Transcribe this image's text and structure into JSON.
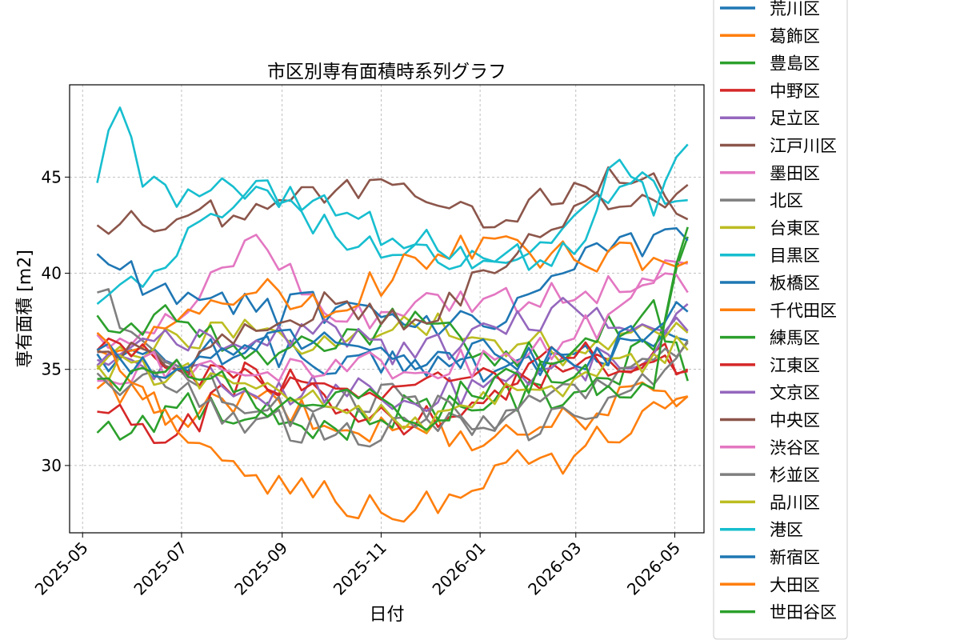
{
  "chart_data": {
    "type": "line",
    "title": "市区別専有面積時系列グラフ",
    "xlabel": "日付",
    "ylabel": "専有面積 [m2]",
    "x_ticks": [
      "2025-05",
      "2025-07",
      "2025-09",
      "2025-11",
      "2026-01",
      "2026-03",
      "2026-05"
    ],
    "y_ticks": [
      30,
      35,
      40,
      45
    ],
    "x_range": [
      "2025-04-23",
      "2026-05-19"
    ],
    "ylim": [
      26.5,
      49.8
    ],
    "grid": true,
    "legend_position": "right-outside",
    "series": [
      {
        "name": "荒川区",
        "color": "#1f77b4",
        "dates": [
          "2025-05-10",
          "2025-06-28",
          "2025-08-16",
          "2025-10-04",
          "2025-11-22",
          "2026-01-10",
          "2026-02-28",
          "2026-04-18",
          "2026-05-09"
        ],
        "values": [
          35.8,
          35.2,
          36.5,
          34.8,
          35.5,
          34.9,
          35.8,
          36.2,
          36.5
        ]
      },
      {
        "name": "葛飾区",
        "color": "#ff7f0e",
        "dates": [
          "2025-05-10",
          "2025-06-28",
          "2025-08-16",
          "2025-10-04",
          "2025-11-22",
          "2026-01-10",
          "2026-02-28",
          "2026-04-18",
          "2026-05-09"
        ],
        "values": [
          34.0,
          32.6,
          33.5,
          31.8,
          32.0,
          31.5,
          32.5,
          33.9,
          33.6
        ]
      },
      {
        "name": "豊島区",
        "color": "#2ca02c",
        "dates": [
          "2025-05-10",
          "2025-06-28",
          "2025-08-16",
          "2025-10-04",
          "2025-11-22",
          "2026-01-10",
          "2026-02-28",
          "2026-04-18",
          "2026-05-09"
        ],
        "values": [
          31.7,
          33.0,
          32.5,
          31.9,
          33.2,
          33.4,
          33.8,
          36.0,
          41.9
        ]
      },
      {
        "name": "中野区",
        "color": "#d62728",
        "dates": [
          "2025-05-10",
          "2025-06-28",
          "2025-08-16",
          "2025-10-04",
          "2025-11-22",
          "2026-01-10",
          "2026-02-28",
          "2026-04-18",
          "2026-05-09"
        ],
        "values": [
          32.8,
          31.6,
          35.0,
          32.7,
          32.1,
          33.9,
          35.1,
          35.9,
          35.0
        ]
      },
      {
        "name": "足立区",
        "color": "#9467bd",
        "dates": [
          "2025-05-10",
          "2025-06-28",
          "2025-08-16",
          "2025-10-04",
          "2025-11-22",
          "2026-01-10",
          "2026-02-28",
          "2026-04-18",
          "2026-05-09"
        ],
        "values": [
          35.5,
          35.0,
          33.6,
          34.2,
          33.2,
          34.6,
          35.2,
          35.8,
          38.4
        ]
      },
      {
        "name": "江戸川区",
        "color": "#8c564b",
        "dates": [
          "2025-05-10",
          "2025-06-28",
          "2025-08-16",
          "2025-10-04",
          "2025-11-22",
          "2026-01-10",
          "2026-02-28",
          "2026-04-18",
          "2026-05-09"
        ],
        "values": [
          42.5,
          42.8,
          43.6,
          44.3,
          44.0,
          42.4,
          44.7,
          45.2,
          42.8
        ]
      },
      {
        "name": "墨田区",
        "color": "#e377c2",
        "dates": [
          "2025-05-10",
          "2025-06-28",
          "2025-08-16",
          "2025-10-04",
          "2025-11-22",
          "2026-01-10",
          "2026-02-28",
          "2026-04-18",
          "2026-05-09"
        ],
        "values": [
          36.8,
          37.5,
          42.0,
          37.5,
          38.5,
          38.9,
          38.6,
          39.5,
          40.5
        ]
      },
      {
        "name": "北区",
        "color": "#7f7f7f",
        "dates": [
          "2025-05-10",
          "2025-06-28",
          "2025-08-16",
          "2025-10-04",
          "2025-11-22",
          "2026-01-10",
          "2026-02-28",
          "2026-04-18",
          "2026-05-09"
        ],
        "values": [
          39.0,
          35.2,
          32.8,
          33.0,
          33.6,
          31.8,
          34.2,
          35.5,
          36.4
        ]
      },
      {
        "name": "台東区",
        "color": "#bcbd22",
        "dates": [
          "2025-05-10",
          "2025-06-28",
          "2025-08-16",
          "2025-10-04",
          "2025-11-22",
          "2026-01-10",
          "2026-02-28",
          "2026-04-18",
          "2026-05-09"
        ],
        "values": [
          35.0,
          36.8,
          37.0,
          36.2,
          37.3,
          36.5,
          36.0,
          37.0,
          36.9
        ]
      },
      {
        "name": "目黒区",
        "color": "#17becf",
        "dates": [
          "2025-05-10",
          "2025-06-28",
          "2025-08-16",
          "2025-10-04",
          "2025-11-22",
          "2026-01-10",
          "2026-02-28",
          "2026-04-18",
          "2026-05-09"
        ],
        "values": [
          38.4,
          40.9,
          44.8,
          41.9,
          41.5,
          40.6,
          43.0,
          44.8,
          43.8
        ]
      },
      {
        "name": "板橋区",
        "color": "#1f77b4",
        "dates": [
          "2025-05-10",
          "2025-06-28",
          "2025-08-16",
          "2025-10-04",
          "2025-11-22",
          "2026-01-10",
          "2026-02-28",
          "2026-04-18",
          "2026-05-09"
        ],
        "values": [
          41.0,
          38.4,
          38.0,
          38.2,
          37.2,
          37.1,
          40.2,
          42.0,
          41.7
        ]
      },
      {
        "name": "千代田区",
        "color": "#ff7f0e",
        "dates": [
          "2025-05-10",
          "2025-06-28",
          "2025-08-16",
          "2025-10-04",
          "2025-11-22",
          "2026-01-10",
          "2026-02-28",
          "2026-04-18",
          "2026-05-09"
        ],
        "values": [
          36.0,
          37.5,
          39.0,
          38.0,
          40.8,
          41.8,
          40.7,
          40.8,
          40.6
        ]
      },
      {
        "name": "練馬区",
        "color": "#2ca02c",
        "dates": [
          "2025-05-10",
          "2025-06-28",
          "2025-08-16",
          "2025-10-04",
          "2025-11-22",
          "2026-01-10",
          "2026-02-28",
          "2026-04-18",
          "2026-05-09"
        ],
        "values": [
          37.8,
          37.5,
          36.0,
          36.1,
          38.0,
          35.2,
          36.0,
          38.6,
          34.4
        ]
      },
      {
        "name": "江東区",
        "color": "#d62728",
        "dates": [
          "2025-05-10",
          "2025-06-28",
          "2025-08-16",
          "2025-10-04",
          "2025-11-22",
          "2026-01-10",
          "2026-02-28",
          "2026-04-18",
          "2026-05-09"
        ],
        "values": [
          36.0,
          35.0,
          34.6,
          34.0,
          34.2,
          34.8,
          35.6,
          35.4,
          34.9
        ]
      },
      {
        "name": "文京区",
        "color": "#9467bd",
        "dates": [
          "2025-05-10",
          "2025-06-28",
          "2025-08-16",
          "2025-10-04",
          "2025-11-22",
          "2026-01-10",
          "2026-02-28",
          "2026-04-18",
          "2026-05-09"
        ],
        "values": [
          35.2,
          36.3,
          36.5,
          37.2,
          35.6,
          37.2,
          38.2,
          37.1,
          37.0
        ]
      },
      {
        "name": "中央区",
        "color": "#8c564b",
        "dates": [
          "2025-05-10",
          "2025-06-28",
          "2025-08-16",
          "2025-10-04",
          "2025-11-22",
          "2026-01-10",
          "2026-02-28",
          "2026-04-18",
          "2026-05-09"
        ],
        "values": [
          35.9,
          35.0,
          37.0,
          38.4,
          37.6,
          40.0,
          43.5,
          43.8,
          44.6
        ]
      },
      {
        "name": "渋谷区",
        "color": "#e377c2",
        "dates": [
          "2025-05-10",
          "2025-06-28",
          "2025-08-16",
          "2025-10-04",
          "2025-11-22",
          "2026-01-10",
          "2026-02-28",
          "2026-04-18",
          "2026-05-09"
        ],
        "values": [
          34.4,
          35.5,
          34.7,
          35.5,
          34.8,
          35.5,
          36.6,
          39.6,
          39.0
        ]
      },
      {
        "name": "杉並区",
        "color": "#7f7f7f",
        "dates": [
          "2025-05-10",
          "2025-06-28",
          "2025-08-16",
          "2025-10-04",
          "2025-11-22",
          "2026-01-10",
          "2026-02-28",
          "2026-04-18",
          "2026-05-09"
        ],
        "values": [
          34.8,
          33.8,
          32.4,
          31.6,
          32.0,
          31.9,
          32.6,
          34.2,
          36.5
        ]
      },
      {
        "name": "品川区",
        "color": "#bcbd22",
        "dates": [
          "2025-05-10",
          "2025-06-28",
          "2025-08-16",
          "2025-10-04",
          "2025-11-22",
          "2026-01-10",
          "2026-02-28",
          "2026-04-18",
          "2026-05-09"
        ],
        "values": [
          35.2,
          35.0,
          34.0,
          33.0,
          32.5,
          33.2,
          34.5,
          35.8,
          36.0
        ]
      },
      {
        "name": "港区",
        "color": "#17becf",
        "dates": [
          "2025-05-10",
          "2025-05-25",
          "2025-06-07",
          "2025-07-12",
          "2025-08-16",
          "2025-10-04",
          "2025-11-22",
          "2026-01-10",
          "2026-02-28",
          "2026-03-28",
          "2026-04-18",
          "2026-05-09"
        ],
        "values": [
          44.7,
          48.9,
          44.5,
          44.0,
          44.5,
          43.0,
          41.5,
          40.6,
          41.0,
          45.9,
          43.0,
          46.7
        ]
      },
      {
        "name": "新宿区",
        "color": "#1f77b4",
        "dates": [
          "2025-05-10",
          "2025-06-28",
          "2025-08-16",
          "2025-10-04",
          "2025-11-22",
          "2026-01-10",
          "2026-02-28",
          "2026-04-18",
          "2026-05-09"
        ],
        "values": [
          36.0,
          35.0,
          36.0,
          36.4,
          35.0,
          35.8,
          35.2,
          37.0,
          38.0
        ]
      },
      {
        "name": "大田区",
        "color": "#ff7f0e",
        "dates": [
          "2025-05-10",
          "2025-06-28",
          "2025-08-16",
          "2025-10-04",
          "2025-11-22",
          "2026-01-10",
          "2026-02-28",
          "2026-04-18",
          "2026-05-09"
        ],
        "values": [
          36.9,
          31.8,
          29.5,
          28.1,
          27.7,
          30.0,
          30.5,
          33.3,
          33.6
        ]
      },
      {
        "name": "世田谷区",
        "color": "#2ca02c",
        "dates": [
          "2025-05-10",
          "2025-06-28",
          "2025-08-16",
          "2025-10-04",
          "2025-11-22",
          "2026-01-10",
          "2026-02-28",
          "2026-04-18",
          "2026-05-09"
        ],
        "values": [
          34.5,
          35.5,
          33.0,
          33.8,
          32.2,
          34.6,
          34.6,
          34.0,
          42.4
        ]
      }
    ]
  }
}
